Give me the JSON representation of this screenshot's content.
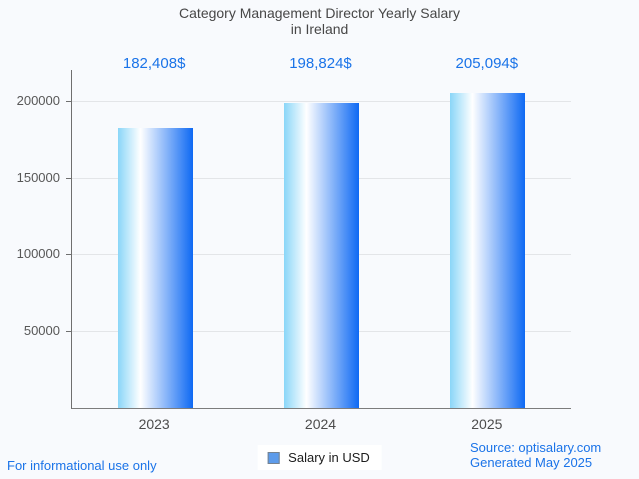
{
  "header": {
    "title_line1": "Category Management Director Yearly Salary",
    "title_line2": "in Ireland"
  },
  "chart_data": {
    "type": "bar",
    "title": "Category Management Director Yearly Salary in Ireland",
    "categories": [
      "2023",
      "2024",
      "2025"
    ],
    "values": [
      182408,
      198824,
      205094
    ],
    "value_labels": [
      "182,408$",
      "198,824$",
      "205,094$"
    ],
    "xlabel": "",
    "ylabel": "",
    "ylim": [
      0,
      220000
    ],
    "ytick_step": 50000,
    "ytick_labels": [
      "50000",
      "100000",
      "150000",
      "200000"
    ],
    "grid": true,
    "legend": {
      "label": "Salary in USD",
      "position": "bottom"
    }
  },
  "colors": {
    "accent_blue": "#1a73e8",
    "bar_gradient_left": "#8ad6f8",
    "bar_gradient_mid": "#ffffff",
    "bar_gradient_right": "#0e69f3",
    "legend_marker_fill": "#5d9bea",
    "gridline": "#e3e5e8",
    "background": "#f8fafd"
  },
  "footer": {
    "left": "For informational use only",
    "source": "Source: optisalary.com",
    "generated": "Generated May 2025"
  }
}
